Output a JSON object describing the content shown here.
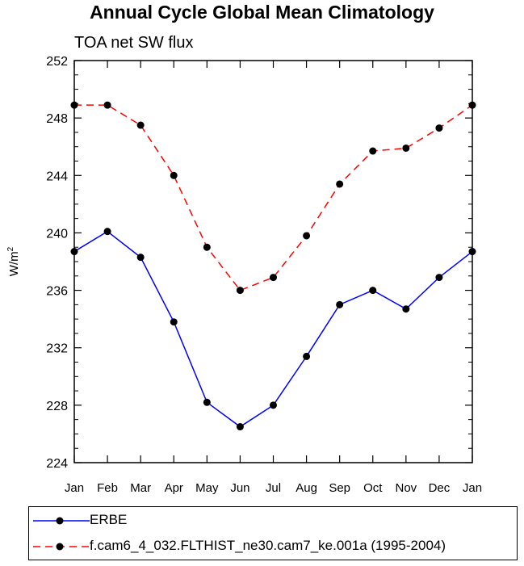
{
  "title": "Annual Cycle Global Mean Climatology",
  "subtitle": "TOA net SW flux",
  "chart_data": {
    "type": "line",
    "categories": [
      "Jan",
      "Feb",
      "Mar",
      "Apr",
      "May",
      "Jun",
      "Jul",
      "Aug",
      "Sep",
      "Oct",
      "Nov",
      "Dec",
      "Jan"
    ],
    "ylabel": "W/m",
    "ylabel_superscript": "2",
    "ylim": [
      224,
      252
    ],
    "yticks": [
      224,
      228,
      232,
      236,
      240,
      244,
      248,
      252
    ],
    "grid": false,
    "legend_position": "bottom",
    "series": [
      {
        "name": "ERBE",
        "color": "#0000ff",
        "dash": "solid",
        "values": [
          238.7,
          240.1,
          238.3,
          233.8,
          228.2,
          226.5,
          228.0,
          231.4,
          235.0,
          236.0,
          234.7,
          236.9,
          238.7
        ]
      },
      {
        "name": "f.cam6_4_032.FLTHIST_ne30.cam7_ke.001a (1995-2004)",
        "color": "#ff0000",
        "dash": "dashed",
        "values": [
          248.9,
          248.9,
          247.5,
          244.0,
          239.0,
          236.0,
          236.9,
          239.8,
          243.4,
          245.7,
          245.9,
          247.3,
          248.9
        ]
      }
    ]
  }
}
